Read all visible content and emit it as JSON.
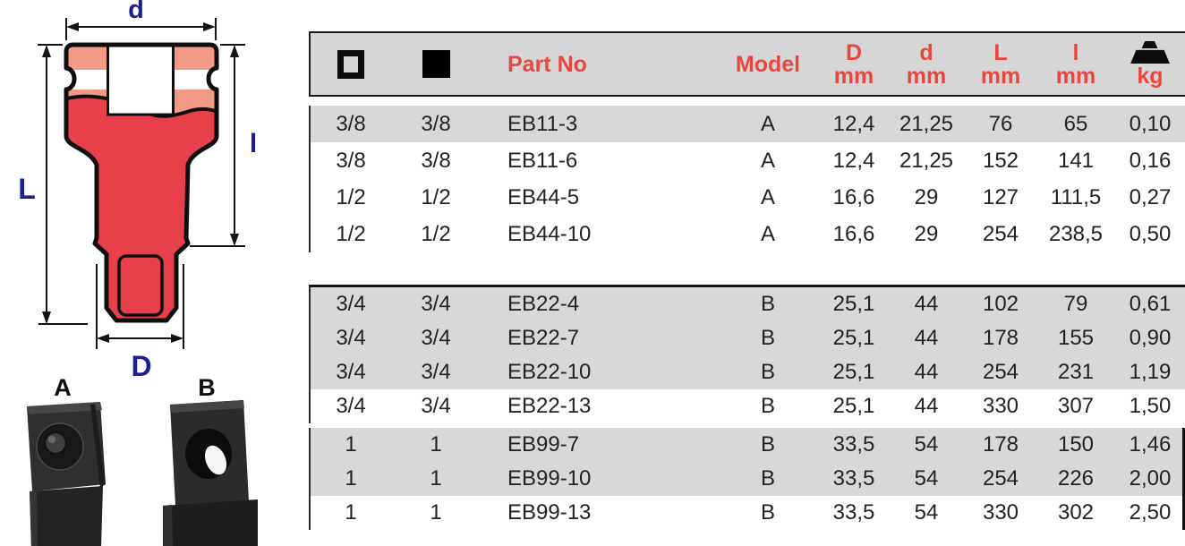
{
  "colors": {
    "accent_red": "#e8473f",
    "header_bg": "#d6d6d6",
    "row_shade": "#d8d8d8",
    "socket_red": "#e8404a",
    "socket_salmon": "#f29a85",
    "dim_label_blue": "#1b1f96"
  },
  "diagram": {
    "dimension_labels": {
      "top": "d",
      "right": "l",
      "left": "L",
      "bottom": "D"
    },
    "photo_labels": {
      "a": "A",
      "b": "B"
    }
  },
  "table": {
    "header": {
      "female_square_icon": "open-square",
      "male_square_icon": "filled-square",
      "part_no": "Part No",
      "model": "Model",
      "dims": [
        {
          "sym": "D",
          "unit": "mm"
        },
        {
          "sym": "d",
          "unit": "mm"
        },
        {
          "sym": "L",
          "unit": "mm"
        },
        {
          "sym": "l",
          "unit": "mm"
        }
      ],
      "weight_icon": "weight-icon",
      "weight_unit": "kg"
    },
    "groups": [
      {
        "rows": [
          {
            "female": "3/8",
            "male": "3/8",
            "part": "EB11-3",
            "model": "A",
            "D": "12,4",
            "d": "21,25",
            "L": "76",
            "l": "65",
            "kg": "0,10",
            "shaded": true
          },
          {
            "female": "3/8",
            "male": "3/8",
            "part": "EB11-6",
            "model": "A",
            "D": "12,4",
            "d": "21,25",
            "L": "152",
            "l": "141",
            "kg": "0,16",
            "shaded": false
          },
          {
            "female": "1/2",
            "male": "1/2",
            "part": "EB44-5",
            "model": "A",
            "D": "16,6",
            "d": "29",
            "L": "127",
            "l": "111,5",
            "kg": "0,27",
            "shaded": false
          },
          {
            "female": "1/2",
            "male": "1/2",
            "part": "EB44-10",
            "model": "A",
            "D": "16,6",
            "d": "29",
            "L": "254",
            "l": "238,5",
            "kg": "0,50",
            "shaded": false
          }
        ]
      },
      {
        "rows": [
          {
            "female": "3/4",
            "male": "3/4",
            "part": "EB22-4",
            "model": "B",
            "D": "25,1",
            "d": "44",
            "L": "102",
            "l": "79",
            "kg": "0,61",
            "shaded": true
          },
          {
            "female": "3/4",
            "male": "3/4",
            "part": "EB22-7",
            "model": "B",
            "D": "25,1",
            "d": "44",
            "L": "178",
            "l": "155",
            "kg": "0,90",
            "shaded": true
          },
          {
            "female": "3/4",
            "male": "3/4",
            "part": "EB22-10",
            "model": "B",
            "D": "25,1",
            "d": "44",
            "L": "254",
            "l": "231",
            "kg": "1,19",
            "shaded": true
          },
          {
            "female": "3/4",
            "male": "3/4",
            "part": "EB22-13",
            "model": "B",
            "D": "25,1",
            "d": "44",
            "L": "330",
            "l": "307",
            "kg": "1,50",
            "shaded": false
          }
        ]
      },
      {
        "rows": [
          {
            "female": "1",
            "male": "1",
            "part": "EB99-7",
            "model": "B",
            "D": "33,5",
            "d": "54",
            "L": "178",
            "l": "150",
            "kg": "1,46",
            "shaded": true
          },
          {
            "female": "1",
            "male": "1",
            "part": "EB99-10",
            "model": "B",
            "D": "33,5",
            "d": "54",
            "L": "254",
            "l": "226",
            "kg": "2,00",
            "shaded": true
          },
          {
            "female": "1",
            "male": "1",
            "part": "EB99-13",
            "model": "B",
            "D": "33,5",
            "d": "54",
            "L": "330",
            "l": "302",
            "kg": "2,50",
            "shaded": false
          }
        ]
      }
    ]
  }
}
